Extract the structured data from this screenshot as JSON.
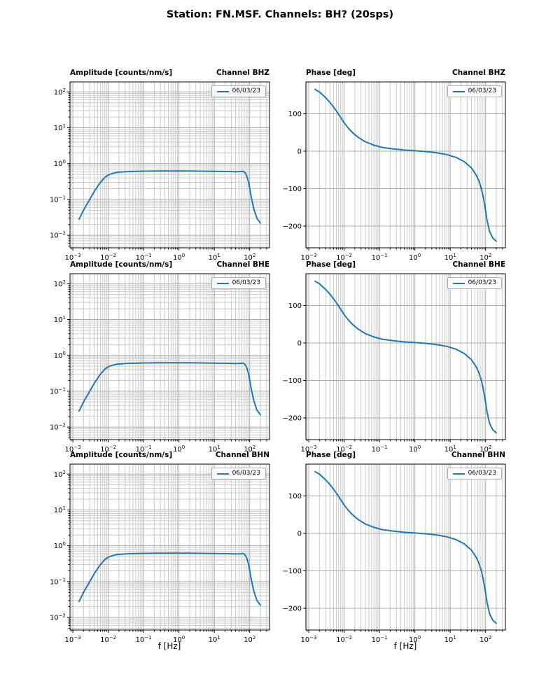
{
  "title": "Station: FN.MSF. Channels: BH? (20sps)",
  "xlabel": "f [Hz]",
  "colors": {
    "line": "#1f77b4",
    "grid_major": "#ababab",
    "grid_minor": "#c9c9c9",
    "spine": "#000000"
  },
  "chart_data": [
    {
      "type": "line",
      "channel": "BHZ",
      "quantity": "amplitude",
      "title_left": "Amplitude [counts/nm/s]",
      "title_right": "Channel BHZ",
      "legend": "06/03/23",
      "x_scale": "log",
      "y_scale": "log",
      "xlim": [
        0.00083,
        363
      ],
      "ylim": [
        0.00447,
        190
      ],
      "x_ticks_exp": [
        -3,
        -2,
        -1,
        0,
        1,
        2
      ],
      "y_ticks_exp": [
        -2,
        -1,
        0,
        1,
        2
      ],
      "x": [
        0.0015,
        0.002,
        0.003,
        0.004,
        0.005,
        0.006,
        0.008,
        0.01,
        0.013,
        0.018,
        0.025,
        0.04,
        0.07,
        0.12,
        0.25,
        0.5,
        1,
        2,
        4,
        8,
        15,
        25,
        40,
        55,
        65,
        75,
        85,
        95,
        110,
        130,
        160,
        200
      ],
      "y": [
        0.028,
        0.05,
        0.1,
        0.165,
        0.23,
        0.3,
        0.41,
        0.48,
        0.53,
        0.57,
        0.585,
        0.6,
        0.61,
        0.615,
        0.62,
        0.62,
        0.62,
        0.62,
        0.615,
        0.61,
        0.605,
        0.6,
        0.59,
        0.6,
        0.61,
        0.55,
        0.42,
        0.28,
        0.12,
        0.055,
        0.03,
        0.022
      ]
    },
    {
      "type": "line",
      "channel": "BHZ",
      "quantity": "phase",
      "title_left": "Phase [deg]",
      "title_right": "Channel BHZ",
      "legend": "06/03/23",
      "x_scale": "log",
      "y_scale": "linear",
      "xlim": [
        0.00083,
        363
      ],
      "ylim": [
        -258,
        185
      ],
      "x_ticks_exp": [
        -3,
        -2,
        -1,
        0,
        1,
        2
      ],
      "y_ticks": [
        -200,
        -100,
        0,
        100
      ],
      "x": [
        0.0015,
        0.002,
        0.003,
        0.004,
        0.005,
        0.006,
        0.008,
        0.01,
        0.013,
        0.018,
        0.025,
        0.04,
        0.07,
        0.12,
        0.25,
        0.5,
        1,
        2,
        4,
        8,
        15,
        25,
        40,
        55,
        65,
        75,
        85,
        95,
        110,
        130,
        160,
        200
      ],
      "y": [
        165,
        158,
        143,
        130,
        118,
        108,
        90,
        76,
        62,
        48,
        37,
        25,
        16,
        10,
        6,
        3,
        1,
        -1,
        -4,
        -9,
        -17,
        -28,
        -45,
        -65,
        -80,
        -98,
        -120,
        -145,
        -185,
        -215,
        -232,
        -240
      ]
    },
    {
      "type": "line",
      "channel": "BHE",
      "quantity": "amplitude",
      "title_left": "Amplitude [counts/nm/s]",
      "title_right": "Channel BHE",
      "legend": "06/03/23",
      "x_scale": "log",
      "y_scale": "log",
      "xlim": [
        0.00083,
        363
      ],
      "ylim": [
        0.00447,
        190
      ],
      "x_ticks_exp": [
        -3,
        -2,
        -1,
        0,
        1,
        2
      ],
      "y_ticks_exp": [
        -2,
        -1,
        0,
        1,
        2
      ],
      "x": [
        0.0015,
        0.002,
        0.003,
        0.004,
        0.005,
        0.006,
        0.008,
        0.01,
        0.013,
        0.018,
        0.025,
        0.04,
        0.07,
        0.12,
        0.25,
        0.5,
        1,
        2,
        4,
        8,
        15,
        25,
        40,
        55,
        65,
        75,
        85,
        95,
        110,
        130,
        160,
        200
      ],
      "y": [
        0.028,
        0.05,
        0.1,
        0.165,
        0.23,
        0.3,
        0.41,
        0.48,
        0.53,
        0.57,
        0.585,
        0.6,
        0.61,
        0.615,
        0.62,
        0.62,
        0.62,
        0.62,
        0.615,
        0.61,
        0.605,
        0.6,
        0.59,
        0.6,
        0.61,
        0.55,
        0.42,
        0.28,
        0.12,
        0.055,
        0.03,
        0.022
      ]
    },
    {
      "type": "line",
      "channel": "BHE",
      "quantity": "phase",
      "title_left": "Phase [deg]",
      "title_right": "Channel BHE",
      "legend": "06/03/23",
      "x_scale": "log",
      "y_scale": "linear",
      "xlim": [
        0.00083,
        363
      ],
      "ylim": [
        -258,
        185
      ],
      "x_ticks_exp": [
        -3,
        -2,
        -1,
        0,
        1,
        2
      ],
      "y_ticks": [
        -200,
        -100,
        0,
        100
      ],
      "x": [
        0.0015,
        0.002,
        0.003,
        0.004,
        0.005,
        0.006,
        0.008,
        0.01,
        0.013,
        0.018,
        0.025,
        0.04,
        0.07,
        0.12,
        0.25,
        0.5,
        1,
        2,
        4,
        8,
        15,
        25,
        40,
        55,
        65,
        75,
        85,
        95,
        110,
        130,
        160,
        200
      ],
      "y": [
        165,
        158,
        143,
        130,
        118,
        108,
        90,
        76,
        62,
        48,
        37,
        25,
        16,
        10,
        6,
        3,
        1,
        -1,
        -4,
        -9,
        -17,
        -28,
        -45,
        -65,
        -80,
        -98,
        -120,
        -145,
        -185,
        -215,
        -232,
        -240
      ]
    },
    {
      "type": "line",
      "channel": "BHN",
      "quantity": "amplitude",
      "title_left": "Amplitude [counts/nm/s]",
      "title_right": "Channel BHN",
      "legend": "06/03/23",
      "x_scale": "log",
      "y_scale": "log",
      "xlim": [
        0.00083,
        363
      ],
      "ylim": [
        0.00447,
        190
      ],
      "x_ticks_exp": [
        -3,
        -2,
        -1,
        0,
        1,
        2
      ],
      "y_ticks_exp": [
        -2,
        -1,
        0,
        1,
        2
      ],
      "x": [
        0.0015,
        0.002,
        0.003,
        0.004,
        0.005,
        0.006,
        0.008,
        0.01,
        0.013,
        0.018,
        0.025,
        0.04,
        0.07,
        0.12,
        0.25,
        0.5,
        1,
        2,
        4,
        8,
        15,
        25,
        40,
        55,
        65,
        75,
        85,
        95,
        110,
        130,
        160,
        200
      ],
      "y": [
        0.028,
        0.05,
        0.1,
        0.165,
        0.23,
        0.3,
        0.41,
        0.48,
        0.53,
        0.57,
        0.585,
        0.6,
        0.61,
        0.615,
        0.62,
        0.62,
        0.62,
        0.62,
        0.615,
        0.61,
        0.605,
        0.6,
        0.59,
        0.6,
        0.61,
        0.55,
        0.42,
        0.28,
        0.12,
        0.055,
        0.03,
        0.022
      ]
    },
    {
      "type": "line",
      "channel": "BHN",
      "quantity": "phase",
      "title_left": "Phase [deg]",
      "title_right": "Channel BHN",
      "legend": "06/03/23",
      "x_scale": "log",
      "y_scale": "linear",
      "xlim": [
        0.00083,
        363
      ],
      "ylim": [
        -258,
        185
      ],
      "x_ticks_exp": [
        -3,
        -2,
        -1,
        0,
        1,
        2
      ],
      "y_ticks": [
        -200,
        -100,
        0,
        100
      ],
      "x": [
        0.0015,
        0.002,
        0.003,
        0.004,
        0.005,
        0.006,
        0.008,
        0.01,
        0.013,
        0.018,
        0.025,
        0.04,
        0.07,
        0.12,
        0.25,
        0.5,
        1,
        2,
        4,
        8,
        15,
        25,
        40,
        55,
        65,
        75,
        85,
        95,
        110,
        130,
        160,
        200
      ],
      "y": [
        165,
        158,
        143,
        130,
        118,
        108,
        90,
        76,
        62,
        48,
        37,
        25,
        16,
        10,
        6,
        3,
        1,
        -1,
        -4,
        -9,
        -17,
        -28,
        -45,
        -65,
        -80,
        -98,
        -120,
        -145,
        -185,
        -215,
        -232,
        -240
      ]
    }
  ]
}
